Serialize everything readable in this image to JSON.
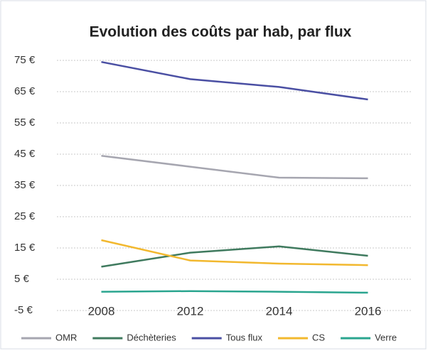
{
  "chart_data": {
    "type": "line",
    "title": "Evolution des coûts par hab, par flux",
    "categories": [
      "2008",
      "2012",
      "2014",
      "2016"
    ],
    "series": [
      {
        "name": "OMR",
        "color": "#a6a6b0",
        "values": [
          44.5,
          41,
          37.5,
          37.3
        ]
      },
      {
        "name": "Déchèteries",
        "color": "#3f7a5e",
        "values": [
          9,
          13.5,
          15.5,
          12.5
        ]
      },
      {
        "name": "Tous flux",
        "color": "#4a4fa3",
        "values": [
          74.5,
          69,
          66.5,
          62.5
        ]
      },
      {
        "name": "CS",
        "color": "#f2b82e",
        "values": [
          17.5,
          11,
          10,
          9.5
        ]
      },
      {
        "name": "Verre",
        "color": "#2aa58f",
        "values": [
          1,
          1.2,
          1,
          0.7
        ]
      }
    ],
    "ylim": [
      -5,
      75
    ],
    "yticks": [
      {
        "value": -5,
        "label": "-5 €"
      },
      {
        "value": 5,
        "label": "5 €"
      },
      {
        "value": 15,
        "label": "15 €"
      },
      {
        "value": 25,
        "label": "25 €"
      },
      {
        "value": 35,
        "label": "35 €"
      },
      {
        "value": 45,
        "label": "45 €"
      },
      {
        "value": 55,
        "label": "55 €"
      },
      {
        "value": 65,
        "label": "65 €"
      },
      {
        "value": 75,
        "label": "75 €"
      }
    ],
    "grid": true,
    "legend": "bottom"
  }
}
